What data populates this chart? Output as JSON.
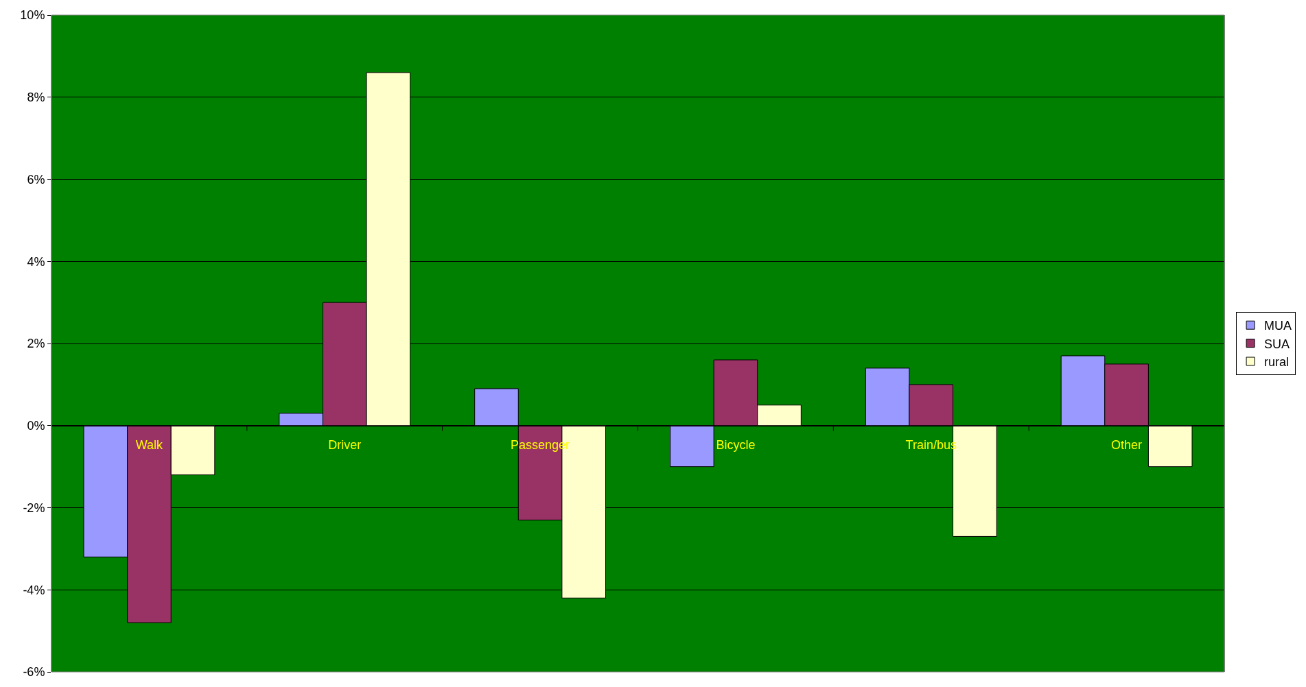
{
  "chart_data": {
    "type": "bar",
    "categories": [
      "Walk",
      "Driver",
      "Passenger",
      "Bicycle",
      "Train/bus",
      "Other"
    ],
    "series": [
      {
        "name": "MUA",
        "color": "#9999ff",
        "values": [
          -3.2,
          0.3,
          0.9,
          -1.0,
          1.4,
          1.7
        ]
      },
      {
        "name": "SUA",
        "color": "#993366",
        "values": [
          -4.8,
          3.0,
          -2.3,
          1.6,
          1.0,
          1.5
        ]
      },
      {
        "name": "rural",
        "color": "#ffffcc",
        "values": [
          -1.2,
          8.6,
          -4.2,
          0.5,
          -2.7,
          -1.0
        ]
      }
    ],
    "ylim": [
      -6,
      10
    ],
    "yticks": [
      {
        "value": -6,
        "label": "-6%"
      },
      {
        "value": -4,
        "label": "-4%"
      },
      {
        "value": -2,
        "label": "-2%"
      },
      {
        "value": 0,
        "label": "0%"
      },
      {
        "value": 2,
        "label": "2%"
      },
      {
        "value": 4,
        "label": "4%"
      },
      {
        "value": 6,
        "label": "6%"
      },
      {
        "value": 8,
        "label": "8%"
      },
      {
        "value": 10,
        "label": "10%"
      }
    ],
    "grid": "y",
    "legend": "right"
  }
}
